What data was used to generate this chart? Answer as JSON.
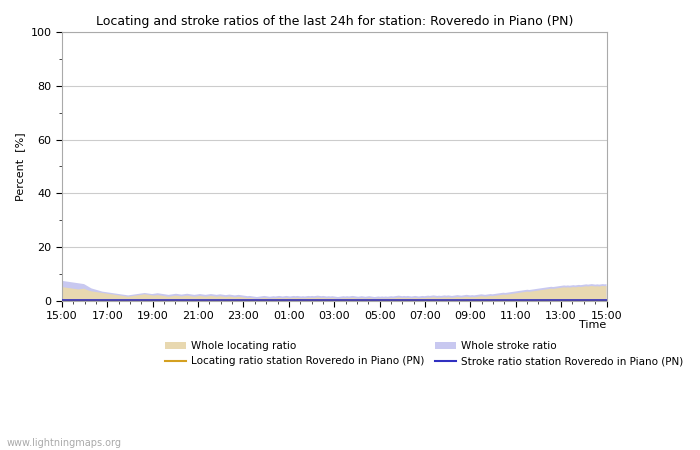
{
  "title": "Locating and stroke ratios of the last 24h for station: Roveredo in Piano (PN)",
  "ylabel": "Percent  [%]",
  "xlabel": "Time",
  "watermark": "www.lightningmaps.org",
  "x_ticks": [
    "15:00",
    "17:00",
    "19:00",
    "21:00",
    "23:00",
    "01:00",
    "03:00",
    "05:00",
    "07:00",
    "09:00",
    "11:00",
    "13:00",
    "15:00"
  ],
  "ylim": [
    0,
    100
  ],
  "yticks": [
    0,
    20,
    40,
    60,
    80,
    100
  ],
  "background_color": "#ffffff",
  "plot_bg_color": "#ffffff",
  "grid_color": "#cccccc",
  "whole_locating_fill_color": "#e8d8b0",
  "whole_stroke_fill_color": "#c8c8f0",
  "locating_line_color": "#d4a020",
  "stroke_line_color": "#3030c0",
  "whole_locating": [
    5.2,
    5.1,
    5.0,
    4.9,
    4.8,
    4.7,
    4.6,
    4.5,
    4.4,
    4.3,
    4.4,
    4.5,
    4.6,
    4.3,
    4.0,
    3.8,
    3.6,
    3.5,
    3.4,
    3.3,
    3.2,
    3.1,
    3.0,
    2.9,
    2.8,
    2.7,
    2.6,
    2.5,
    2.4,
    2.3,
    2.2,
    2.1,
    2.0,
    1.9,
    1.8,
    1.7,
    1.6,
    1.7,
    1.8,
    1.9,
    2.0,
    2.1,
    2.2,
    2.3,
    2.4,
    2.5,
    2.4,
    2.3,
    2.2,
    2.1,
    2.0,
    2.1,
    2.2,
    2.1,
    2.0,
    1.9,
    1.8,
    1.7,
    1.6,
    1.7,
    1.8,
    1.9,
    2.0,
    1.9,
    1.8,
    1.7,
    1.8,
    1.9,
    2.0,
    1.9,
    1.8,
    1.7,
    1.6,
    1.7,
    1.8,
    1.9,
    1.8,
    1.7,
    1.6,
    1.7,
    1.8,
    1.9,
    1.8,
    1.7,
    1.6,
    1.7,
    1.8,
    1.7,
    1.6,
    1.5,
    1.6,
    1.7,
    1.6,
    1.5,
    1.4,
    1.5,
    1.6,
    1.5,
    1.4,
    1.3,
    1.2,
    1.1,
    1.2,
    1.1,
    1.0,
    0.9,
    0.8,
    0.9,
    1.0,
    1.1,
    1.2,
    1.1,
    1.0,
    0.9,
    1.0,
    1.1,
    1.0,
    1.1,
    1.2,
    1.1,
    1.0,
    1.1,
    1.2,
    1.1,
    1.0,
    1.1,
    1.2,
    1.1,
    1.2,
    1.1,
    1.0,
    1.1,
    1.0,
    1.1,
    1.2,
    1.1,
    1.2,
    1.1,
    1.2,
    1.3,
    1.2,
    1.1,
    1.2,
    1.1,
    1.0,
    1.1,
    1.0,
    1.1,
    1.0,
    0.9,
    0.8,
    0.9,
    1.0,
    1.1,
    1.0,
    1.1,
    1.0,
    1.1,
    1.2,
    1.1,
    1.0,
    0.9,
    1.0,
    1.1,
    1.0,
    0.9,
    1.0,
    1.1,
    1.0,
    0.9,
    0.8,
    0.9,
    1.0,
    0.9,
    1.0,
    0.9,
    1.0,
    0.9,
    1.0,
    1.1,
    1.0,
    1.1,
    1.2,
    1.3,
    1.2,
    1.1,
    1.2,
    1.1,
    1.2,
    1.1,
    1.0,
    1.1,
    1.2,
    1.1,
    1.0,
    1.1,
    1.2,
    1.1,
    1.2,
    1.3,
    1.2,
    1.3,
    1.4,
    1.3,
    1.2,
    1.3,
    1.2,
    1.3,
    1.4,
    1.3,
    1.4,
    1.3,
    1.2,
    1.3,
    1.4,
    1.5,
    1.4,
    1.3,
    1.4,
    1.5,
    1.6,
    1.5,
    1.4,
    1.5,
    1.4,
    1.5,
    1.6,
    1.7,
    1.8,
    1.7,
    1.6,
    1.7,
    1.8,
    1.9,
    1.8,
    1.9,
    2.0,
    2.1,
    2.2,
    2.3,
    2.4,
    2.3,
    2.4,
    2.5,
    2.6,
    2.7,
    2.8,
    2.9,
    3.0,
    3.1,
    3.2,
    3.3,
    3.4,
    3.5,
    3.4,
    3.5,
    3.6,
    3.7,
    3.8,
    3.9,
    4.0,
    4.1,
    4.2,
    4.3,
    4.4,
    4.5,
    4.6,
    4.5,
    4.6,
    4.7,
    4.8,
    4.9,
    5.0,
    5.1,
    5.0,
    5.1,
    5.0,
    5.1,
    5.2,
    5.1,
    5.2,
    5.3,
    5.2,
    5.3,
    5.4,
    5.5,
    5.4,
    5.5,
    5.6,
    5.5,
    5.4,
    5.5,
    5.4,
    5.5,
    5.6,
    5.5,
    5.6
  ],
  "whole_stroke": [
    7.5,
    7.4,
    7.3,
    7.2,
    7.1,
    7.0,
    6.9,
    6.8,
    6.7,
    6.6,
    6.5,
    6.4,
    6.3,
    5.9,
    5.5,
    5.1,
    4.7,
    4.5,
    4.3,
    4.1,
    3.9,
    3.7,
    3.5,
    3.4,
    3.3,
    3.2,
    3.1,
    3.0,
    2.9,
    2.8,
    2.7,
    2.6,
    2.5,
    2.4,
    2.3,
    2.2,
    2.1,
    2.2,
    2.3,
    2.4,
    2.5,
    2.6,
    2.7,
    2.8,
    2.9,
    3.0,
    2.9,
    2.8,
    2.7,
    2.6,
    2.7,
    2.8,
    2.9,
    2.8,
    2.7,
    2.6,
    2.5,
    2.4,
    2.3,
    2.4,
    2.5,
    2.6,
    2.7,
    2.6,
    2.5,
    2.4,
    2.5,
    2.6,
    2.7,
    2.6,
    2.5,
    2.4,
    2.3,
    2.4,
    2.5,
    2.6,
    2.5,
    2.4,
    2.3,
    2.4,
    2.5,
    2.6,
    2.5,
    2.4,
    2.3,
    2.4,
    2.5,
    2.4,
    2.3,
    2.2,
    2.3,
    2.4,
    2.3,
    2.2,
    2.1,
    2.2,
    2.3,
    2.2,
    2.1,
    2.0,
    1.9,
    1.8,
    1.9,
    1.8,
    1.7,
    1.6,
    1.5,
    1.6,
    1.7,
    1.8,
    1.9,
    1.8,
    1.7,
    1.6,
    1.7,
    1.8,
    1.7,
    1.8,
    1.9,
    1.8,
    1.7,
    1.8,
    1.9,
    1.8,
    1.7,
    1.8,
    1.9,
    1.8,
    1.9,
    1.8,
    1.7,
    1.8,
    1.7,
    1.8,
    1.9,
    1.8,
    1.9,
    1.8,
    1.9,
    2.0,
    1.9,
    1.8,
    1.9,
    1.8,
    1.7,
    1.8,
    1.7,
    1.8,
    1.7,
    1.6,
    1.5,
    1.6,
    1.7,
    1.8,
    1.7,
    1.8,
    1.7,
    1.8,
    1.9,
    1.8,
    1.7,
    1.6,
    1.7,
    1.8,
    1.7,
    1.6,
    1.7,
    1.8,
    1.7,
    1.6,
    1.5,
    1.6,
    1.7,
    1.6,
    1.7,
    1.6,
    1.7,
    1.6,
    1.7,
    1.8,
    1.7,
    1.8,
    1.9,
    2.0,
    1.9,
    1.8,
    1.9,
    1.8,
    1.9,
    1.8,
    1.7,
    1.8,
    1.9,
    1.8,
    1.7,
    1.8,
    1.9,
    1.8,
    1.9,
    2.0,
    1.9,
    2.0,
    2.1,
    2.0,
    1.9,
    2.0,
    1.9,
    2.0,
    2.1,
    2.0,
    2.1,
    2.0,
    1.9,
    2.0,
    2.1,
    2.2,
    2.1,
    2.0,
    2.1,
    2.2,
    2.3,
    2.2,
    2.1,
    2.2,
    2.1,
    2.2,
    2.3,
    2.4,
    2.5,
    2.4,
    2.3,
    2.4,
    2.5,
    2.6,
    2.5,
    2.6,
    2.7,
    2.8,
    2.9,
    3.0,
    3.1,
    3.0,
    3.1,
    3.2,
    3.3,
    3.4,
    3.5,
    3.6,
    3.7,
    3.8,
    3.9,
    4.0,
    4.1,
    4.2,
    4.1,
    4.2,
    4.3,
    4.4,
    4.5,
    4.6,
    4.7,
    4.8,
    4.9,
    5.0,
    5.1,
    5.2,
    5.3,
    5.2,
    5.3,
    5.4,
    5.5,
    5.6,
    5.7,
    5.8,
    5.7,
    5.8,
    5.7,
    5.8,
    5.9,
    5.8,
    5.9,
    6.0,
    5.9,
    6.0,
    6.1,
    6.2,
    6.1,
    6.2,
    6.3,
    6.2,
    6.1,
    6.2,
    6.1,
    6.2,
    6.3,
    6.2,
    6.3
  ],
  "locating_ratio_station": 0.3,
  "stroke_ratio_station": 0.5
}
